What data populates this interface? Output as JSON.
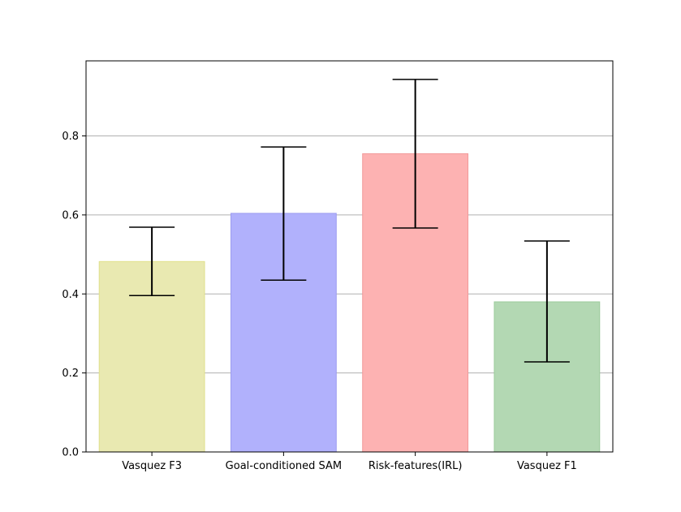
{
  "chart_data": {
    "type": "bar",
    "title": "",
    "xlabel": "",
    "ylabel": "",
    "categories": [
      "Vasquez F3",
      "Goal-conditioned SAM",
      "Risk-features(IRL)",
      "Vasquez F1"
    ],
    "values": [
      0.482,
      0.604,
      0.755,
      0.38
    ],
    "error_low": [
      0.396,
      0.435,
      0.567,
      0.228
    ],
    "error_high": [
      0.569,
      0.772,
      0.943,
      0.534
    ],
    "bar_colors": [
      "#e9e9b1",
      "#b1b1fc",
      "#fdb2b2",
      "#b3d8b3"
    ],
    "bar_edge_colors": [
      "#e0e08c",
      "#9c9cf0",
      "#f29a9a",
      "#9ccb9c"
    ],
    "ylim": [
      0,
      0.99
    ],
    "yticks": [
      0.0,
      0.2,
      0.4,
      0.6,
      0.8
    ],
    "ytick_labels": [
      "0.0",
      "0.2",
      "0.4",
      "0.6",
      "0.8"
    ],
    "grid": "horizontal",
    "grid_color": "#b0b0b0",
    "errorbar_color": "#000000"
  }
}
